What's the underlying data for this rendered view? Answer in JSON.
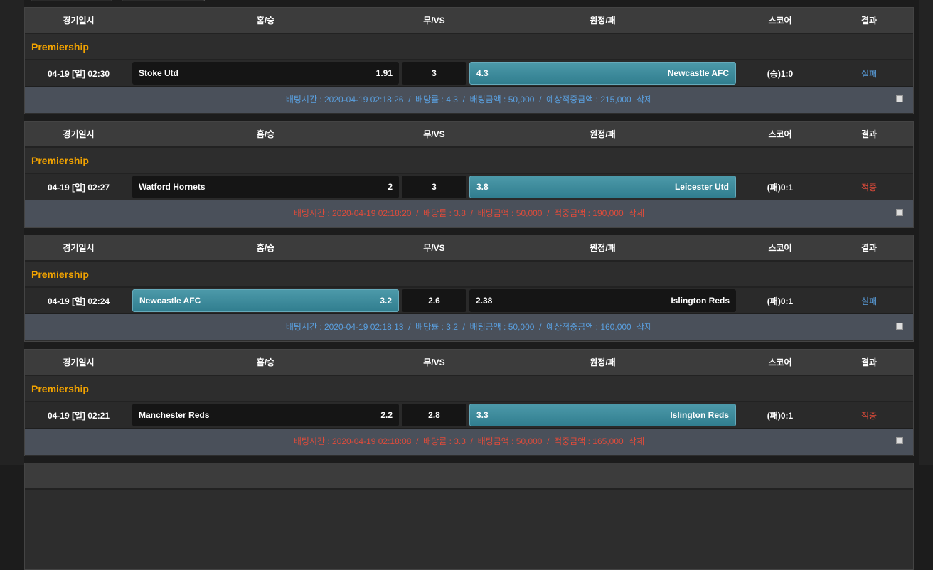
{
  "headers": {
    "date": "경기일시",
    "home": "홈/승",
    "draw": "무/VS",
    "away": "원정/패",
    "score": "스코어",
    "result": "결과"
  },
  "bets": [
    {
      "league": "Premiership",
      "date": "04-19 [일] 02:30",
      "home": "Stoke Utd",
      "home_odds": "1.91",
      "draw_odds": "3",
      "away_odds": "4.3",
      "away": "Newcastle AFC",
      "selected": "away",
      "score": "(승)1:0",
      "result": "실패",
      "result_color": "#5aa0e0",
      "info": "배팅시간 : 2020-04-19 02:18:26  /  배당률 : 4.3  /  배팅금액 : 50,000  /  예상적중금액 : 215,000",
      "delete": "삭제"
    },
    {
      "league": "Premiership",
      "date": "04-19 [일] 02:27",
      "home": "Watford Hornets",
      "home_odds": "2",
      "draw_odds": "3",
      "away_odds": "3.8",
      "away": "Leicester Utd",
      "selected": "away",
      "score": "(패)0:1",
      "result": "적중",
      "result_color": "#e04b3a",
      "info": "배팅시간 : 2020-04-19 02:18:20  /  배당률 : 3.8  /  배팅금액 : 50,000  /  적중금액 : 190,000",
      "delete": "삭제"
    },
    {
      "league": "Premiership",
      "date": "04-19 [일] 02:24",
      "home": "Newcastle AFC",
      "home_odds": "3.2",
      "draw_odds": "2.6",
      "away_odds": "2.38",
      "away": "Islington Reds",
      "selected": "home",
      "score": "(패)0:1",
      "result": "실패",
      "result_color": "#5aa0e0",
      "info": "배팅시간 : 2020-04-19 02:18:13  /  배당률 : 3.2  /  배팅금액 : 50,000  /  예상적중금액 : 160,000",
      "delete": "삭제"
    },
    {
      "league": "Premiership",
      "date": "04-19 [일] 02:21",
      "home": "Manchester Reds",
      "home_odds": "2.2",
      "draw_odds": "2.8",
      "away_odds": "3.3",
      "away": "Islington Reds",
      "selected": "away",
      "score": "(패)0:1",
      "result": "적중",
      "result_color": "#e04b3a",
      "info": "배팅시간 : 2020-04-19 02:18:08  /  배당률 : 3.3  /  배팅금액 : 50,000  /  적중금액 : 165,000",
      "delete": "삭제"
    }
  ]
}
